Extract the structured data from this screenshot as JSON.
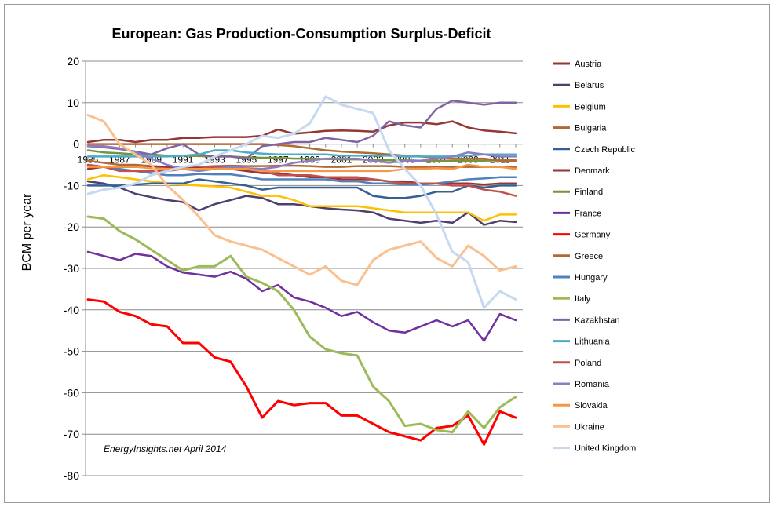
{
  "chart_data": {
    "type": "line",
    "title": "European: Gas Production-Consumption  Surplus-Deficit",
    "ylabel": "BCM per year",
    "xlabel": "",
    "ylim": [
      -80,
      20
    ],
    "yticks": [
      20,
      10,
      0,
      -10,
      -20,
      -30,
      -40,
      -50,
      -60,
      -70,
      -80
    ],
    "x": [
      1985,
      1986,
      1987,
      1988,
      1989,
      1990,
      1991,
      1992,
      1993,
      1994,
      1995,
      1996,
      1997,
      1998,
      1999,
      2000,
      2001,
      2002,
      2003,
      2004,
      2005,
      2006,
      2007,
      2008,
      2009,
      2010,
      2011,
      2012
    ],
    "x_tick_labels": [
      "1985",
      "1987",
      "1989",
      "1991",
      "1993",
      "1995",
      "1997",
      "1999",
      "2001",
      "2003",
      "2005",
      "2007",
      "2009",
      "2011"
    ],
    "grid": "horizontal",
    "legend_position": "right",
    "annotation": "EnergyInsights.net April 2014",
    "series": [
      {
        "name": "Austria",
        "color": "#943634",
        "values": [
          0.5,
          1,
          1,
          0.5,
          1,
          1,
          1.5,
          1.5,
          1.7,
          1.7,
          1.7,
          2,
          3.5,
          2.5,
          2.8,
          3.2,
          3.3,
          3.2,
          3.0,
          4.5,
          5.2,
          5.2,
          4.8,
          5.5,
          4,
          3.3,
          3,
          2.6
        ]
      },
      {
        "name": "Belarus",
        "color": "#4f3f6f",
        "values": [
          -9,
          -9.5,
          -10.5,
          -12,
          -12.8,
          -13.5,
          -14,
          -16,
          -14.5,
          -13.5,
          -12.5,
          -13,
          -14.5,
          -14.5,
          -15,
          -15.5,
          -15.8,
          -16,
          -16.5,
          -18,
          -18.5,
          -19,
          -18.5,
          -19,
          -16.5,
          -19.5,
          -18.5,
          -18.8
        ]
      },
      {
        "name": "Belgium",
        "color": "#ffc000",
        "values": [
          -8.5,
          -7.5,
          -8,
          -8.5,
          -9,
          -9.5,
          -9.8,
          -10,
          -10.2,
          -10.5,
          -11.5,
          -12.5,
          -12.5,
          -13.5,
          -15,
          -15,
          -15,
          -15,
          -15.5,
          -16,
          -16.5,
          -16.5,
          -16.5,
          -16.5,
          -16.5,
          -18.5,
          -17,
          -17
        ]
      },
      {
        "name": "Bulgaria",
        "color": "#b06a35",
        "values": [
          -4,
          -4.5,
          -5,
          -5,
          -5.3,
          -5.5,
          -5.5,
          -5.5,
          -5.3,
          -5.2,
          -5.3,
          -5.3,
          -5.2,
          -5.2,
          -5.3,
          -5.5,
          -5.5,
          -5.3,
          -5.3,
          -5.3,
          -5.5,
          -5.5,
          -5.5,
          -5.5,
          -5.5,
          -5.5,
          -5.5,
          -5.5
        ]
      },
      {
        "name": "Czech Republic",
        "color": "#366092",
        "values": [
          -10,
          -10,
          -10,
          -9.8,
          -9.5,
          -9.5,
          -9.5,
          -8.5,
          -9,
          -9.5,
          -10,
          -11,
          -10.5,
          -10.5,
          -10.5,
          -10.5,
          -10.5,
          -10.5,
          -12.5,
          -13,
          -13,
          -12.5,
          -11.5,
          -11.5,
          -10,
          -10.5,
          -10,
          -10
        ]
      },
      {
        "name": "Denmark",
        "color": "#943634",
        "values": [
          -6,
          -5.5,
          -5.5,
          -5.5,
          -5.5,
          -5.5,
          -5.5,
          -5.8,
          -6,
          -6,
          -6.5,
          -7,
          -7,
          -7.5,
          -8,
          -8,
          -8.5,
          -8.5,
          -8.5,
          -9,
          -9,
          -9.5,
          -9.5,
          -9.5,
          -9.5,
          -9.8,
          -9.5,
          -9.5
        ]
      },
      {
        "name": "Finland",
        "color": "#77933c",
        "values": [
          -1.5,
          -2,
          -2.2,
          -2.5,
          -2.5,
          -2.8,
          -2.8,
          -2.9,
          -3,
          -3,
          -3.2,
          -3.3,
          -3.3,
          -3.5,
          -3.5,
          -3.6,
          -3.7,
          -3.7,
          -3.8,
          -3.9,
          -3.9,
          -4,
          -4,
          -4,
          -4,
          -4,
          -3.9,
          -3.9
        ]
      },
      {
        "name": "France",
        "color": "#7030a0",
        "values": [
          -26,
          -27,
          -28,
          -26.5,
          -27,
          -29.5,
          -31,
          -31.5,
          -32,
          -30.8,
          -32.5,
          -35.5,
          -34,
          -37,
          -38,
          -39.5,
          -41.5,
          -40.5,
          -43,
          -45,
          -45.5,
          -44,
          -42.5,
          -44,
          -42.5,
          -47.5,
          -41,
          -42.5
        ]
      },
      {
        "name": "Germany",
        "color": "#ff0000",
        "values": [
          -37.5,
          -38,
          -40.5,
          -41.5,
          -43.5,
          -44,
          -48,
          -48,
          -51.5,
          -52.5,
          -58.5,
          -66,
          -62,
          -63,
          -62.5,
          -62.5,
          -65.5,
          -65.5,
          -67.5,
          -69.5,
          -70.5,
          -71.5,
          -68.5,
          -68,
          -65.5,
          -72.5,
          -64.5,
          -66
        ]
      },
      {
        "name": "Greece",
        "color": "#b06a35",
        "values": [
          0,
          0,
          0,
          0,
          0,
          0,
          0,
          0,
          0,
          0,
          0,
          0,
          -0.2,
          -0.5,
          -1,
          -1.5,
          -1.8,
          -2,
          -2.2,
          -2.5,
          -2.8,
          -3,
          -3.3,
          -3.5,
          -3.5,
          -3.5,
          -4,
          -4
        ]
      },
      {
        "name": "Hungary",
        "color": "#4f81bd",
        "values": [
          -5,
          -5.5,
          -6,
          -6.5,
          -7,
          -7.5,
          -7.5,
          -7.2,
          -7.3,
          -7.3,
          -7.8,
          -8.5,
          -8.5,
          -8.5,
          -8.5,
          -8.5,
          -9,
          -9,
          -9.5,
          -9.5,
          -9.8,
          -9.8,
          -9.5,
          -9,
          -8.5,
          -8.3,
          -8,
          -8
        ]
      },
      {
        "name": "Italy",
        "color": "#9bbb59",
        "values": [
          -17.5,
          -18,
          -21,
          -23,
          -25.5,
          -28,
          -30.5,
          -29.5,
          -29.5,
          -27,
          -32,
          -33.5,
          -35.5,
          -40,
          -46.5,
          -49.5,
          -50.5,
          -51,
          -58.5,
          -62,
          -68,
          -67.5,
          -69,
          -69.5,
          -64.5,
          -68.5,
          -63.5,
          -61
        ]
      },
      {
        "name": "Kazakhstan",
        "color": "#8064a2",
        "values": [
          -0.5,
          -0.8,
          -1.2,
          -1.8,
          -2.5,
          -1,
          0,
          -2.5,
          -3,
          -3,
          -3.5,
          -0.5,
          0,
          0.5,
          0.5,
          1.5,
          1,
          0.5,
          2,
          5.5,
          4.5,
          4,
          8.5,
          10.5,
          10,
          9.5,
          10,
          10
        ]
      },
      {
        "name": "Lithuania",
        "color": "#4bacc6",
        "values": [
          -3,
          -3,
          -3,
          -3,
          -3,
          -3,
          -2.8,
          -2.5,
          -1.5,
          -1.5,
          -2,
          -2.3,
          -2.5,
          -2.5,
          -2.5,
          -2.5,
          -2.8,
          -2.8,
          -2.8,
          -2.8,
          -3,
          -3,
          -3,
          -3,
          -2.8,
          -2.5,
          -2.5,
          -2.5
        ]
      },
      {
        "name": "Poland",
        "color": "#c0504d",
        "values": [
          -5,
          -5.5,
          -6.5,
          -6.5,
          -6.5,
          -6.5,
          -6,
          -6,
          -5.5,
          -5.5,
          -6,
          -6.5,
          -7.5,
          -7.5,
          -7.5,
          -8,
          -8,
          -8,
          -8.5,
          -9,
          -9.5,
          -9.5,
          -9.5,
          -10,
          -10,
          -11,
          -11.5,
          -12.5
        ]
      },
      {
        "name": "Romania",
        "color": "#8e7cc3",
        "values": [
          -0.5,
          -0.5,
          -1,
          -2,
          -3.5,
          -5,
          -6,
          -6.5,
          -6,
          -5.5,
          -5.8,
          -6,
          -5.5,
          -4.5,
          -4,
          -3.5,
          -3.5,
          -3.5,
          -4,
          -4.5,
          -4,
          -4,
          -3.5,
          -3,
          -2,
          -2.5,
          -3,
          -3
        ]
      },
      {
        "name": "Slovakia",
        "color": "#f79646",
        "values": [
          -5.5,
          -5.5,
          -5.5,
          -5.5,
          -5.8,
          -6,
          -6,
          -6,
          -6,
          -6,
          -6,
          -6.5,
          -6.5,
          -6.5,
          -6.5,
          -6.5,
          -6.5,
          -6.5,
          -6.5,
          -6.5,
          -6,
          -6,
          -5.8,
          -6,
          -5,
          -5.5,
          -5.5,
          -6
        ]
      },
      {
        "name": "Ukraine",
        "color": "#fac090",
        "values": [
          7,
          5.5,
          0,
          -2.5,
          -5,
          -10,
          -13.5,
          -17.5,
          -22,
          -23.5,
          -24.5,
          -25.5,
          -27.5,
          -29.5,
          -31.5,
          -29.5,
          -33,
          -34,
          -28,
          -25.5,
          -24.5,
          -23.5,
          -27.5,
          -29.5,
          -24.5,
          -27,
          -30.5,
          -29.5
        ]
      },
      {
        "name": "United Kingdom",
        "color": "#c6d9f1",
        "values": [
          -12,
          -11,
          -10.5,
          -9.5,
          -7.5,
          -6.5,
          -5.5,
          -5,
          -3,
          -1.5,
          0,
          2,
          1.5,
          2.5,
          5,
          11.5,
          9.5,
          8.5,
          7.5,
          -1.5,
          -6,
          -10,
          -17,
          -26,
          -28.5,
          -39.5,
          -35.5,
          -37.5
        ]
      }
    ]
  }
}
